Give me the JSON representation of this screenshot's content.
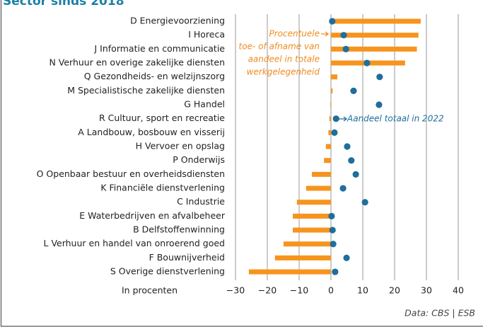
{
  "chart_data": {
    "type": "bar_dot",
    "title": "Sector sinds 2018",
    "categories": [
      "D Energievoorziening",
      "I Horeca",
      "J Informatie en communicatie",
      "N Verhuur en overige zakelijke diensten",
      "Q Gezondheids- en welzijnszorg",
      "M Specialistische zakelijke diensten",
      "G Handel",
      "R Cultuur, sport en recreatie",
      "A Landbouw, bosbouw en visserij",
      "H Vervoer en opslag",
      "P Onderwijs",
      "O Openbaar bestuur en overheidsdiensten",
      "K Financiële dienstverlening",
      "C Industrie",
      "E Waterbedrijven en afvalbeheer",
      "B Delfstoffenwinning",
      "L Verhuur en handel van onroerend goed",
      "F Bouwnijverheid",
      "S Overige dienstverlening"
    ],
    "series": [
      {
        "color": "#f7941d",
        "values": [
          28.2,
          27.5,
          27,
          23.3,
          2,
          0.5,
          -0.2,
          -0.5,
          -0.8,
          -1.6,
          -2.2,
          -6,
          -7.8,
          -10.7,
          -12,
          -12,
          -14.9,
          -17.6,
          -25.8
        ]
      },
      {
        "color": "#1f6e9c",
        "values": [
          0.4,
          4,
          4.7,
          11.3,
          15.3,
          7.1,
          15.1,
          1.6,
          1.1,
          5.1,
          6.4,
          7.8,
          3.8,
          10.7,
          0.2,
          0.5,
          0.7,
          4.9,
          1.3
        ]
      }
    ],
    "xlim": [
      -30,
      40
    ],
    "xticks": [
      {
        "value": -30,
        "label": "−30"
      },
      {
        "value": -20,
        "label": "−20"
      },
      {
        "value": -10,
        "label": "−10"
      },
      0,
      10,
      20,
      30,
      40
    ],
    "grid": true,
    "x_label": "In procenten",
    "bar_annotation": [
      "Procentuele",
      "toe- of afname van",
      "aandeel in totale",
      "werkgelegenheid"
    ],
    "dot_annotation": "Aandeel totaal in 2022",
    "source": "Data: CBS | ESB"
  }
}
